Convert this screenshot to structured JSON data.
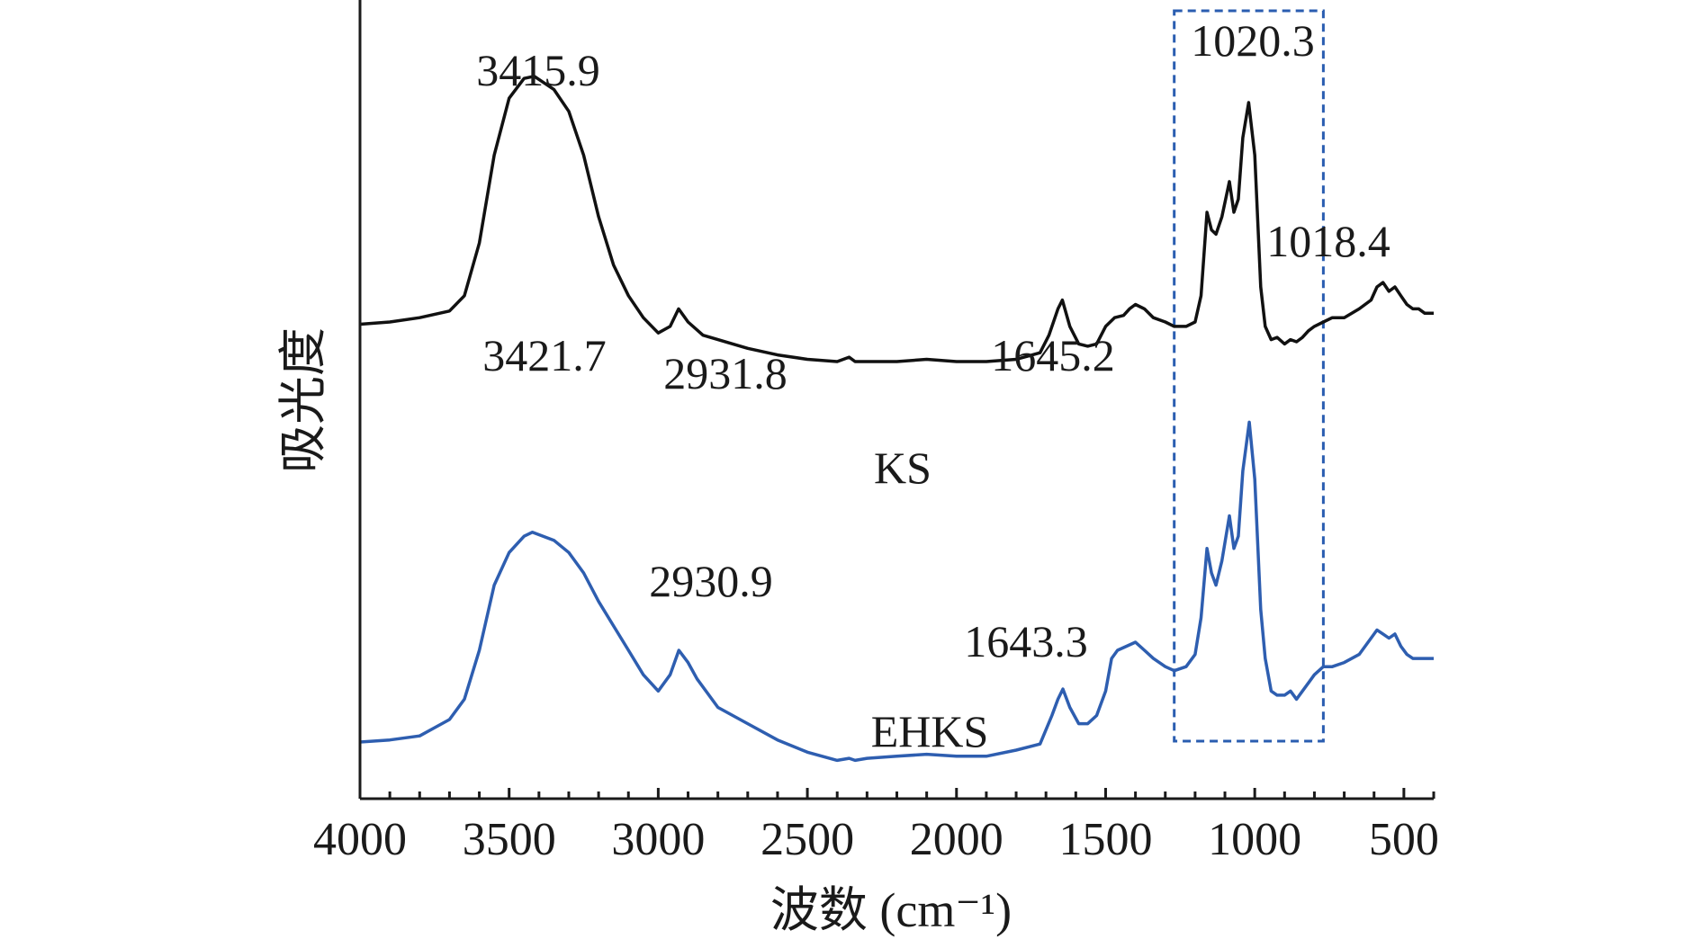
{
  "chart_data": {
    "type": "line",
    "title": "",
    "xlabel": "波数 (cm⁻¹)",
    "ylabel": "吸光度",
    "xlim": [
      4000,
      400
    ],
    "x_reversed": true,
    "xticks": [
      4000,
      3500,
      3000,
      2500,
      2000,
      1500,
      1000,
      500
    ],
    "xtick_labels": [
      "4000",
      "3500",
      "3000",
      "2500",
      "2000",
      "1500",
      "1000",
      "500"
    ],
    "y_units": "arbitrary",
    "ylim": [
      0,
      100
    ],
    "grid": false,
    "highlight_box": {
      "x_from": 1270,
      "x_to": 770,
      "style": "dashed",
      "color": "#2a5db0"
    },
    "series": [
      {
        "name": "KS",
        "color": "#111111",
        "points": [
          [
            4000,
            41.5
          ],
          [
            3900,
            42
          ],
          [
            3800,
            43
          ],
          [
            3700,
            44.5
          ],
          [
            3650,
            48
          ],
          [
            3600,
            60
          ],
          [
            3550,
            80
          ],
          [
            3500,
            93
          ],
          [
            3450,
            97.5
          ],
          [
            3415.9,
            98
          ],
          [
            3350,
            95
          ],
          [
            3300,
            90
          ],
          [
            3250,
            80
          ],
          [
            3200,
            66
          ],
          [
            3150,
            55
          ],
          [
            3100,
            48
          ],
          [
            3050,
            43
          ],
          [
            3000,
            39.5
          ],
          [
            2960,
            41
          ],
          [
            2931.8,
            45
          ],
          [
            2900,
            42
          ],
          [
            2850,
            39
          ],
          [
            2800,
            38
          ],
          [
            2700,
            36
          ],
          [
            2600,
            34.5
          ],
          [
            2500,
            33.5
          ],
          [
            2400,
            33
          ],
          [
            2360,
            34
          ],
          [
            2340,
            33
          ],
          [
            2300,
            33
          ],
          [
            2200,
            33
          ],
          [
            2100,
            33.5
          ],
          [
            2000,
            33
          ],
          [
            1900,
            33
          ],
          [
            1800,
            33.5
          ],
          [
            1720,
            35
          ],
          [
            1690,
            39
          ],
          [
            1660,
            45
          ],
          [
            1645.2,
            47
          ],
          [
            1620,
            41
          ],
          [
            1590,
            37
          ],
          [
            1560,
            36.5
          ],
          [
            1530,
            37
          ],
          [
            1500,
            41
          ],
          [
            1470,
            43
          ],
          [
            1440,
            43.5
          ],
          [
            1420,
            45
          ],
          [
            1400,
            46
          ],
          [
            1370,
            45
          ],
          [
            1340,
            43
          ],
          [
            1300,
            42
          ],
          [
            1270,
            41
          ],
          [
            1230,
            41
          ],
          [
            1200,
            42
          ],
          [
            1180,
            48
          ],
          [
            1160,
            67
          ],
          [
            1145,
            63
          ],
          [
            1130,
            62
          ],
          [
            1110,
            66
          ],
          [
            1085,
            74
          ],
          [
            1070,
            67
          ],
          [
            1055,
            70
          ],
          [
            1040,
            84
          ],
          [
            1020.3,
            92
          ],
          [
            1000,
            80
          ],
          [
            980,
            50
          ],
          [
            965,
            41
          ],
          [
            945,
            38
          ],
          [
            925,
            38.5
          ],
          [
            900,
            37
          ],
          [
            880,
            38
          ],
          [
            860,
            37.5
          ],
          [
            840,
            38.5
          ],
          [
            820,
            40
          ],
          [
            800,
            41
          ],
          [
            770,
            42
          ],
          [
            740,
            43
          ],
          [
            700,
            43
          ],
          [
            650,
            45
          ],
          [
            610,
            47
          ],
          [
            590,
            50
          ],
          [
            570,
            51
          ],
          [
            550,
            49
          ],
          [
            530,
            50
          ],
          [
            510,
            48
          ],
          [
            490,
            46
          ],
          [
            470,
            45
          ],
          [
            450,
            45
          ],
          [
            430,
            44
          ],
          [
            400,
            44
          ]
        ]
      },
      {
        "name": "EHKS",
        "color": "#2e5eb0",
        "points": [
          [
            4000,
            9.5
          ],
          [
            3900,
            10
          ],
          [
            3800,
            11
          ],
          [
            3750,
            13
          ],
          [
            3700,
            15
          ],
          [
            3650,
            20
          ],
          [
            3600,
            32
          ],
          [
            3550,
            48
          ],
          [
            3500,
            56
          ],
          [
            3450,
            60
          ],
          [
            3421.7,
            61
          ],
          [
            3350,
            59
          ],
          [
            3300,
            56
          ],
          [
            3250,
            51
          ],
          [
            3200,
            44
          ],
          [
            3150,
            38
          ],
          [
            3100,
            32
          ],
          [
            3050,
            26
          ],
          [
            3000,
            22
          ],
          [
            2960,
            26
          ],
          [
            2930.9,
            32
          ],
          [
            2900,
            29
          ],
          [
            2870,
            25
          ],
          [
            2800,
            18
          ],
          [
            2700,
            14
          ],
          [
            2600,
            10
          ],
          [
            2500,
            7
          ],
          [
            2400,
            5
          ],
          [
            2360,
            5.5
          ],
          [
            2340,
            5
          ],
          [
            2300,
            5.5
          ],
          [
            2200,
            6
          ],
          [
            2100,
            6.5
          ],
          [
            2000,
            6
          ],
          [
            1900,
            6
          ],
          [
            1800,
            7.5
          ],
          [
            1720,
            9
          ],
          [
            1680,
            16
          ],
          [
            1660,
            20
          ],
          [
            1643.3,
            22.5
          ],
          [
            1620,
            18
          ],
          [
            1590,
            14
          ],
          [
            1560,
            14
          ],
          [
            1530,
            16
          ],
          [
            1500,
            22
          ],
          [
            1480,
            30
          ],
          [
            1460,
            32
          ],
          [
            1430,
            33
          ],
          [
            1400,
            34
          ],
          [
            1370,
            32
          ],
          [
            1340,
            30
          ],
          [
            1300,
            28
          ],
          [
            1270,
            27
          ],
          [
            1230,
            28
          ],
          [
            1200,
            31
          ],
          [
            1180,
            40
          ],
          [
            1160,
            57
          ],
          [
            1145,
            51
          ],
          [
            1130,
            48
          ],
          [
            1110,
            54
          ],
          [
            1085,
            65
          ],
          [
            1070,
            57
          ],
          [
            1055,
            60
          ],
          [
            1040,
            76
          ],
          [
            1018.4,
            88
          ],
          [
            1000,
            74
          ],
          [
            980,
            42
          ],
          [
            965,
            30
          ],
          [
            945,
            22
          ],
          [
            925,
            21
          ],
          [
            900,
            21
          ],
          [
            880,
            22
          ],
          [
            860,
            20
          ],
          [
            840,
            22
          ],
          [
            820,
            24
          ],
          [
            800,
            26
          ],
          [
            770,
            28
          ],
          [
            740,
            28
          ],
          [
            700,
            29
          ],
          [
            650,
            31
          ],
          [
            610,
            35
          ],
          [
            590,
            37
          ],
          [
            570,
            36
          ],
          [
            550,
            35
          ],
          [
            530,
            36
          ],
          [
            510,
            33
          ],
          [
            490,
            31
          ],
          [
            470,
            30
          ],
          [
            450,
            30
          ],
          [
            430,
            30
          ],
          [
            400,
            30
          ]
        ]
      }
    ],
    "annotations": [
      {
        "text": "3415.9",
        "x": 3415.9,
        "series": "KS"
      },
      {
        "text": "2931.8",
        "x": 2931.8,
        "series": "KS"
      },
      {
        "text": "1645.2",
        "x": 1645.2,
        "series": "KS"
      },
      {
        "text": "1020.3",
        "x": 1020.3,
        "series": "KS"
      },
      {
        "text": "3421.7",
        "x": 3421.7,
        "series": "EHKS"
      },
      {
        "text": "2930.9",
        "x": 2930.9,
        "series": "EHKS"
      },
      {
        "text": "1643.3",
        "x": 1643.3,
        "series": "EHKS"
      },
      {
        "text": "1018.4",
        "x": 1018.4,
        "series": "EHKS"
      }
    ],
    "series_labels": [
      {
        "text": "KS",
        "series": "KS"
      },
      {
        "text": "EHKS",
        "series": "EHKS"
      }
    ]
  }
}
